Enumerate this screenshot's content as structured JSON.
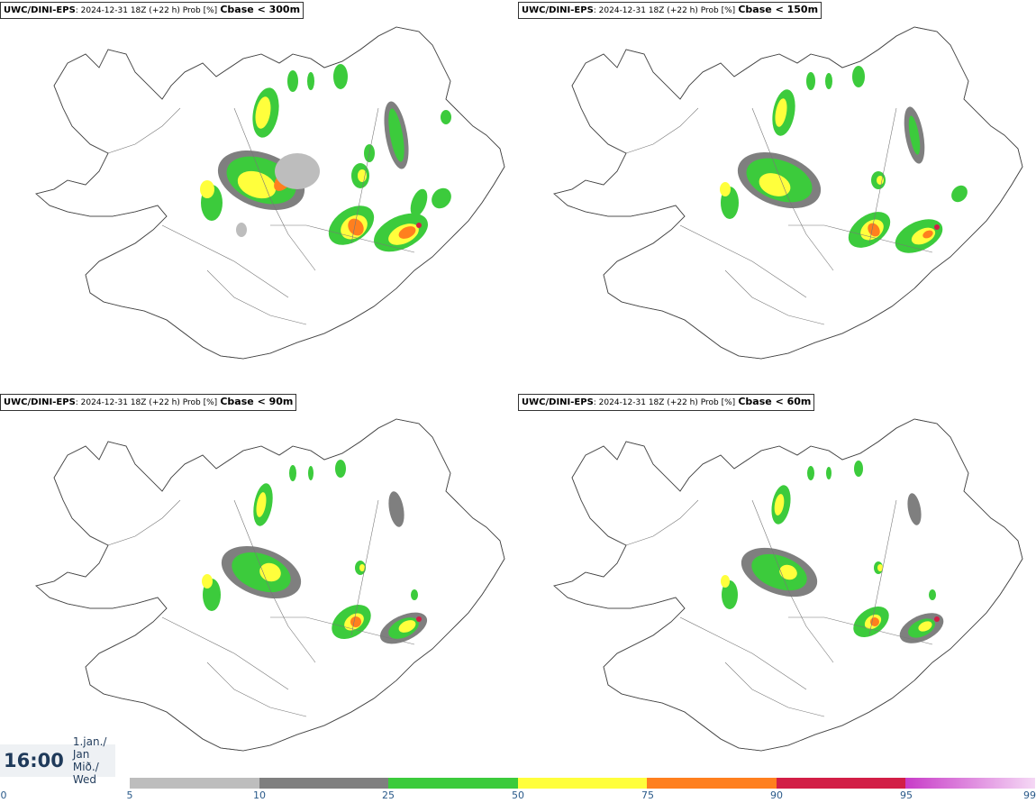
{
  "panels": [
    {
      "model": "UWC/DINI-EPS",
      "meta": ": 2024-12-31 18Z (+22 h) Prob [%]",
      "param": "Cbase < 300m"
    },
    {
      "model": "UWC/DINI-EPS",
      "meta": ": 2024-12-31 18Z (+22 h) Prob [%]",
      "param": "Cbase < 150m"
    },
    {
      "model": "UWC/DINI-EPS",
      "meta": ": 2024-12-31 18Z (+22 h) Prob [%]",
      "param": "Cbase < 90m"
    },
    {
      "model": "UWC/DINI-EPS",
      "meta": ": 2024-12-31 18Z (+22 h) Prob [%]",
      "param": "Cbase < 60m"
    }
  ],
  "time": {
    "value": "16:00",
    "date_line1": "1.jan./ Jan",
    "date_line2": "Mið./ Wed"
  },
  "legend": {
    "ticks": [
      "0",
      "5",
      "10",
      "25",
      "50",
      "75",
      "90",
      "95",
      "99"
    ],
    "colors": [
      "#bdbdbd",
      "#7f7f7f",
      "#3ccb3c",
      "#ffff3c",
      "#ff7f1e",
      "#d21e46",
      "#c83cc8",
      "#f0c8f0"
    ]
  },
  "map": {
    "land_color": "#ffffff",
    "outline_color": "#555555",
    "prob_colors": {
      "p5": "#bdbdbd",
      "p10": "#7f7f7f",
      "p25": "#3ccb3c",
      "p50": "#ffff3c",
      "p75": "#ff7f1e",
      "p90": "#d21e46"
    }
  }
}
